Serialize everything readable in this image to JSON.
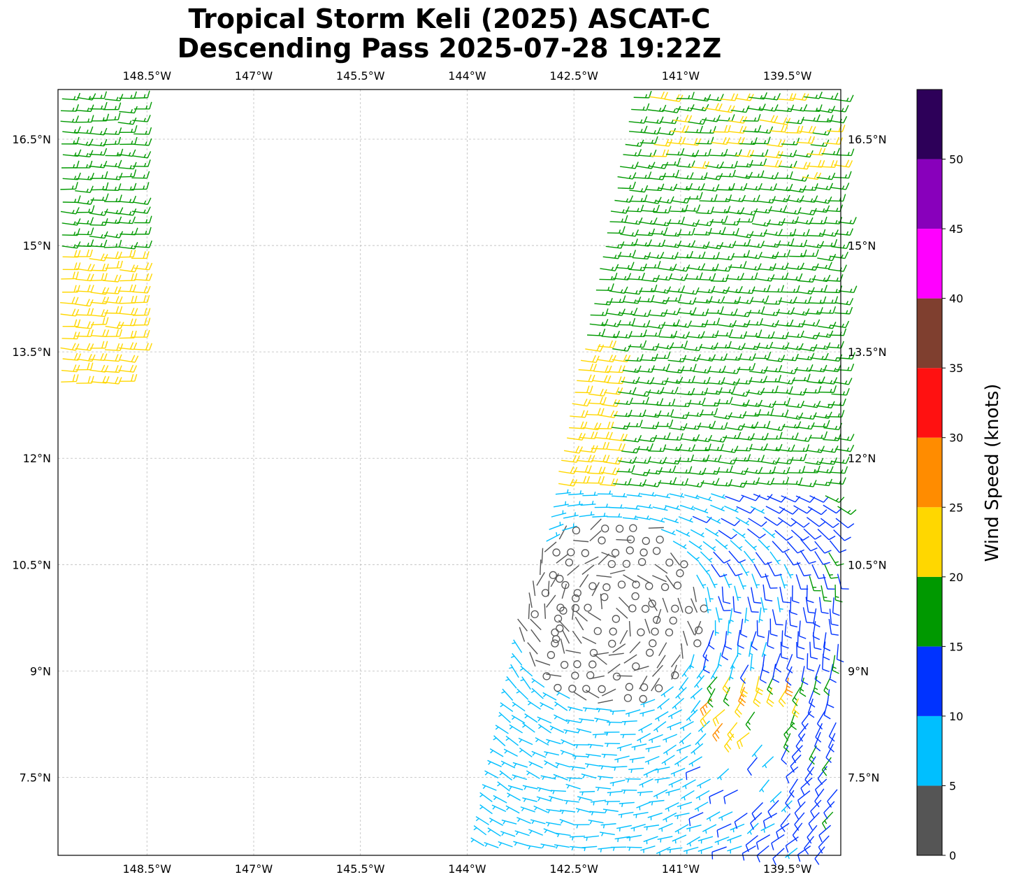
{
  "title": {
    "line1": "Tropical Storm Keli (2025) ASCAT-C",
    "line2": "Descending Pass 2025-07-28 19:22Z"
  },
  "map": {
    "lon_range": [
      -149.75,
      -138.75
    ],
    "lat_range": [
      6.4,
      17.2
    ],
    "lon_ticks": [
      {
        "value": -148.5,
        "label": "148.5°W"
      },
      {
        "value": -147.0,
        "label": "147°W"
      },
      {
        "value": -145.5,
        "label": "145.5°W"
      },
      {
        "value": -144.0,
        "label": "144°W"
      },
      {
        "value": -142.5,
        "label": "142.5°W"
      },
      {
        "value": -141.0,
        "label": "141°W"
      },
      {
        "value": -139.5,
        "label": "139.5°W"
      }
    ],
    "lat_ticks": [
      {
        "value": 16.5,
        "label": "16.5°N"
      },
      {
        "value": 15.0,
        "label": "15°N"
      },
      {
        "value": 13.5,
        "label": "13.5°N"
      },
      {
        "value": 12.0,
        "label": "12°N"
      },
      {
        "value": 10.5,
        "label": "10.5°N"
      },
      {
        "value": 9.0,
        "label": "9°N"
      },
      {
        "value": 7.5,
        "label": "7.5°N"
      }
    ],
    "gridlines": true
  },
  "colorbar": {
    "label": "Wind Speed (knots)",
    "ticks": [
      "0",
      "5",
      "10",
      "15",
      "20",
      "25",
      "30",
      "35",
      "40",
      "45",
      "50"
    ],
    "bins": [
      {
        "min": 0,
        "max": 5,
        "color": "#555555"
      },
      {
        "min": 5,
        "max": 10,
        "color": "#00bfff"
      },
      {
        "min": 10,
        "max": 15,
        "color": "#0033ff"
      },
      {
        "min": 15,
        "max": 20,
        "color": "#009900"
      },
      {
        "min": 20,
        "max": 25,
        "color": "#ffd700"
      },
      {
        "min": 25,
        "max": 30,
        "color": "#ff8c00"
      },
      {
        "min": 30,
        "max": 35,
        "color": "#ff1111"
      },
      {
        "min": 35,
        "max": 40,
        "color": "#7f3f2f"
      },
      {
        "min": 40,
        "max": 45,
        "color": "#ff00ff"
      },
      {
        "min": 45,
        "max": 50,
        "color": "#8800bb"
      },
      {
        "min": 50,
        "max": 55,
        "color": "#2d0059"
      }
    ]
  },
  "chart_data": {
    "type": "wind_barbs",
    "units": "knots",
    "swaths": [
      {
        "region": "west",
        "lon": [
          -149.75,
          -148.6
        ],
        "lat": [
          13.0,
          17.2
        ],
        "speed_kt": "15-25",
        "direction": "easterly"
      },
      {
        "region": "east",
        "lon": [
          -143.8,
          -138.75
        ],
        "lat": [
          6.4,
          17.2
        ],
        "speed_kt": "0-30",
        "direction": "cyclonic circulation near 9.8N 142.0W"
      }
    ],
    "calm_points": [
      {
        "lon": -142.7,
        "lat": 10.3
      },
      {
        "lon": -142.9,
        "lat": 10.1
      },
      {
        "lon": -142.45,
        "lat": 10.1
      },
      {
        "lon": -143.05,
        "lat": 9.8
      },
      {
        "lon": -142.65,
        "lat": 9.85
      },
      {
        "lon": -142.7,
        "lat": 9.6
      },
      {
        "lon": -142.75,
        "lat": 9.45
      },
      {
        "lon": -141.4,
        "lat": 9.95
      }
    ]
  }
}
